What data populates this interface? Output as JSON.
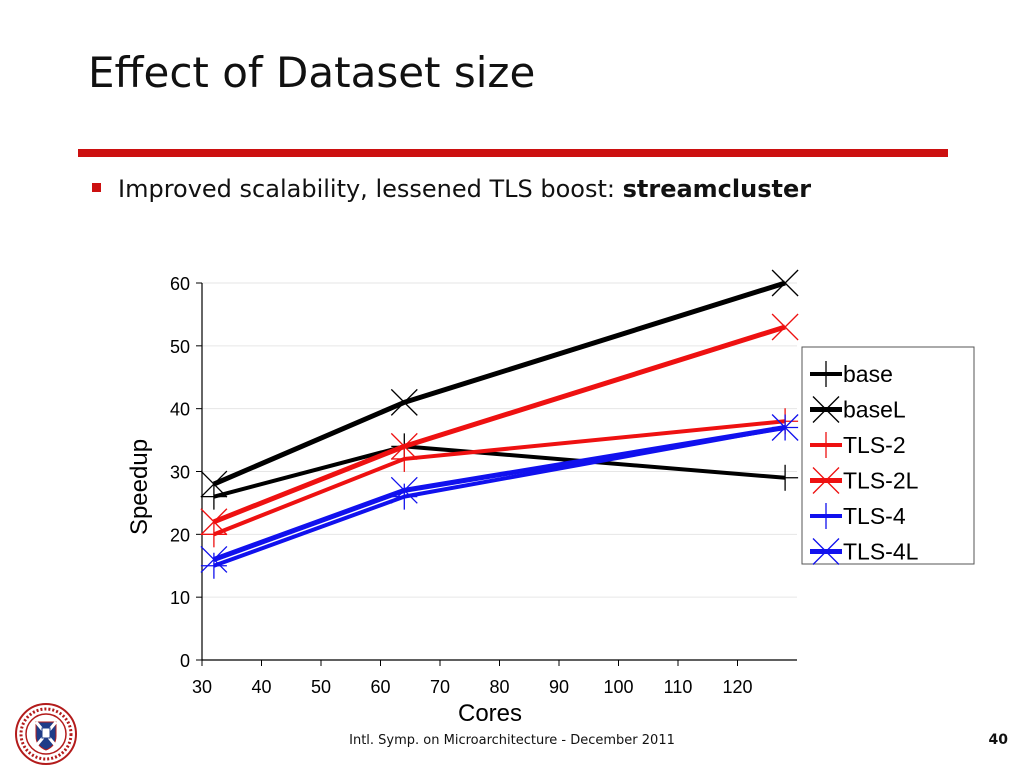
{
  "slide": {
    "title": "Effect of Dataset size",
    "bullet_text": "Improved scalability, lessened TLS boost: ",
    "bullet_bold": "streamcluster",
    "footer": "Intl. Symp. on Microarchitecture - December 2011",
    "page_number": "40",
    "accent_color": "#cc1010"
  },
  "chart_data": {
    "type": "line",
    "title": "",
    "xlabel": "Cores",
    "ylabel": "Speedup",
    "xlim": [
      30,
      130
    ],
    "ylim": [
      0,
      60
    ],
    "xticks": [
      "30",
      "40",
      "50",
      "60",
      "70",
      "80",
      "90",
      "100",
      "110",
      "120"
    ],
    "yticks": [
      "0",
      "10",
      "20",
      "30",
      "40",
      "50",
      "60"
    ],
    "grid": true,
    "legend_position": "right",
    "series": [
      {
        "name": "base",
        "color": "#000000",
        "width": 4,
        "marker": "plus",
        "x": [
          32,
          64,
          128
        ],
        "y": [
          26,
          34,
          29
        ]
      },
      {
        "name": "baseL",
        "color": "#000000",
        "width": 5,
        "marker": "cross",
        "x": [
          32,
          64,
          128
        ],
        "y": [
          28,
          41,
          60
        ]
      },
      {
        "name": "TLS-2",
        "color": "#ee1111",
        "width": 4,
        "marker": "plus",
        "x": [
          32,
          64,
          128
        ],
        "y": [
          20,
          32,
          38
        ]
      },
      {
        "name": "TLS-2L",
        "color": "#ee1111",
        "width": 5,
        "marker": "cross",
        "x": [
          32,
          64,
          128
        ],
        "y": [
          22,
          34,
          53
        ]
      },
      {
        "name": "TLS-4",
        "color": "#1111ee",
        "width": 4,
        "marker": "plus",
        "x": [
          32,
          64,
          128
        ],
        "y": [
          15,
          26,
          37
        ]
      },
      {
        "name": "TLS-4L",
        "color": "#1111ee",
        "width": 5,
        "marker": "cross",
        "x": [
          32,
          64,
          128
        ],
        "y": [
          16,
          27,
          37
        ]
      }
    ]
  }
}
